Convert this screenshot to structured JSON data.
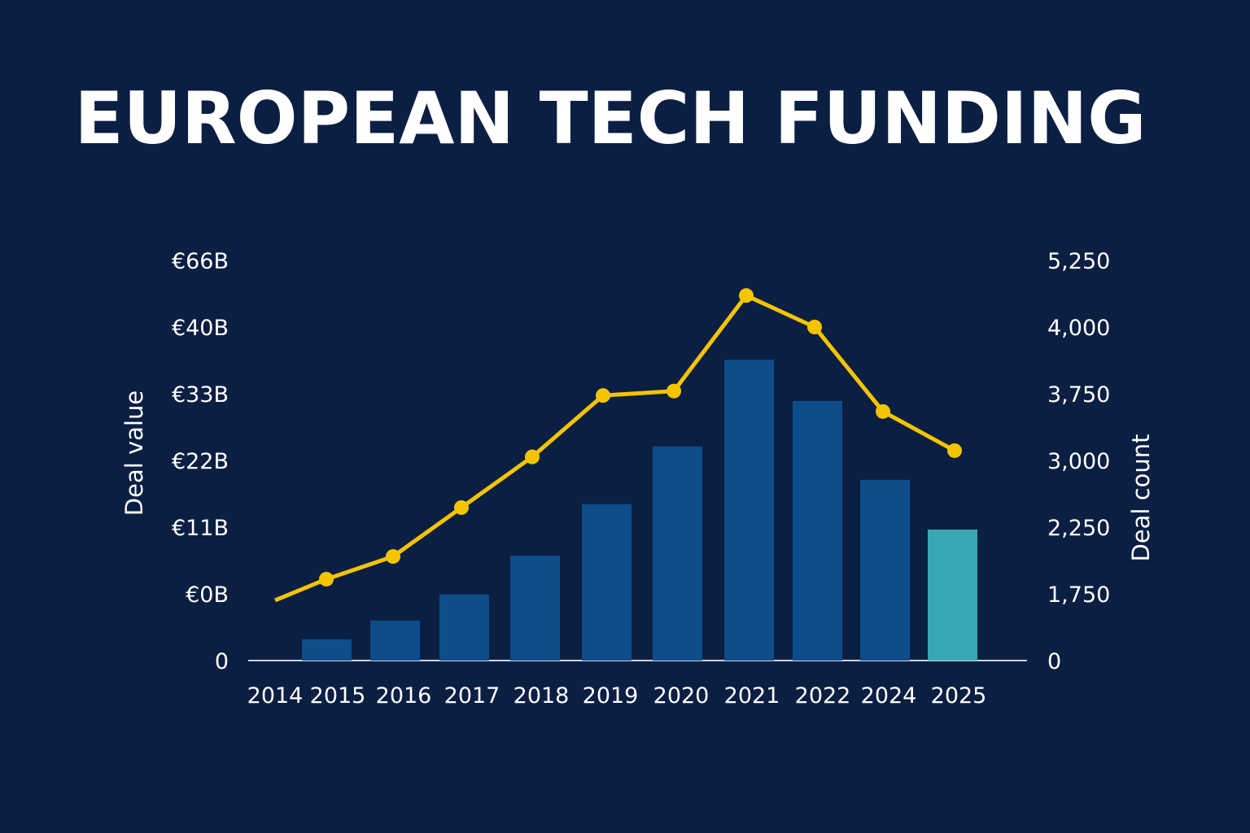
{
  "chart_data": {
    "type": "bar+line",
    "title": "EUROPEAN TECH FUNDING",
    "categories": [
      "2014",
      "2015",
      "2016",
      "2017",
      "2018",
      "2019",
      "2020",
      "2021",
      "2022",
      "2024",
      "2025"
    ],
    "series": [
      {
        "name": "Deal value",
        "type": "bar",
        "axis": "left",
        "unit": "€B",
        "values": [
          null,
          3.5,
          6.6,
          10.9,
          17.3,
          25.8,
          35.3,
          49.6,
          42.8,
          29.8,
          21.6
        ],
        "highlight_last": true
      },
      {
        "name": "Deal count",
        "type": "line",
        "axis": "right",
        "values": [
          1580,
          1860,
          2030,
          2470,
          3040,
          3730,
          3760,
          4590,
          4000,
          3550,
          3110
        ]
      }
    ],
    "left_axis": {
      "label": "Deal value",
      "tick_labels": [
        "0",
        "€0B",
        "€11B",
        "€22B",
        "€33B",
        "€40B",
        "€66B"
      ],
      "range": [
        0,
        66
      ]
    },
    "right_axis": {
      "label": "Deal count",
      "tick_labels": [
        "0",
        "1,750",
        "2,250",
        "3,000",
        "3,750",
        "4,000",
        "5,250"
      ],
      "tick_values": [
        0,
        1750,
        2250,
        3000,
        3750,
        4000,
        5250
      ]
    },
    "grid": false,
    "colors": {
      "background": "#0b1f42",
      "bar": "#0d4d8a",
      "bar_highlight": "#38a8b5",
      "line": "#f5c400",
      "text": "#ffffff"
    }
  }
}
